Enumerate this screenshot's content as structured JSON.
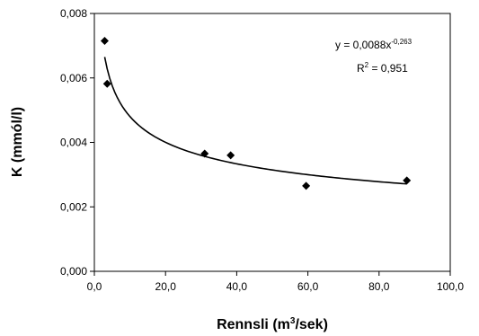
{
  "chart_data": {
    "type": "scatter",
    "title": "",
    "xlabel": "Rennsli (m",
    "xlabel_sup": "3",
    "xlabel_tail": "/sek)",
    "ylabel": "K (mmól/l)",
    "xlim": [
      0,
      100
    ],
    "ylim": [
      0,
      0.008
    ],
    "x_ticks": [
      0,
      20,
      40,
      60,
      80,
      100
    ],
    "y_ticks": [
      0,
      0.002,
      0.004,
      0.006,
      0.008
    ],
    "x_tick_labels": [
      "0,0",
      "20,0",
      "40,0",
      "60,0",
      "80,0",
      "100,0"
    ],
    "y_tick_labels": [
      "0,000",
      "0,002",
      "0,004",
      "0,006",
      "0,008"
    ],
    "grid": false,
    "legend": false,
    "series": [
      {
        "marker": "diamond",
        "x": [
          2.9,
          3.6,
          31.0,
          38.3,
          59.5,
          87.8
        ],
        "y": [
          0.00715,
          0.00582,
          0.00365,
          0.0036,
          0.00265,
          0.00282
        ]
      }
    ],
    "trendline": {
      "type": "power",
      "a": 0.0088,
      "b": -0.263,
      "x_range": [
        2.9,
        87.8
      ]
    },
    "annotations": {
      "equation_main": "y = 0,0088x",
      "equation_exp": "-0,263",
      "r2_main": "R",
      "r2_sup": "2",
      "r2_value": " = 0,951"
    },
    "colors": {
      "marker": "#000000",
      "line": "#000000",
      "axis": "#000000",
      "background": "#ffffff"
    }
  }
}
